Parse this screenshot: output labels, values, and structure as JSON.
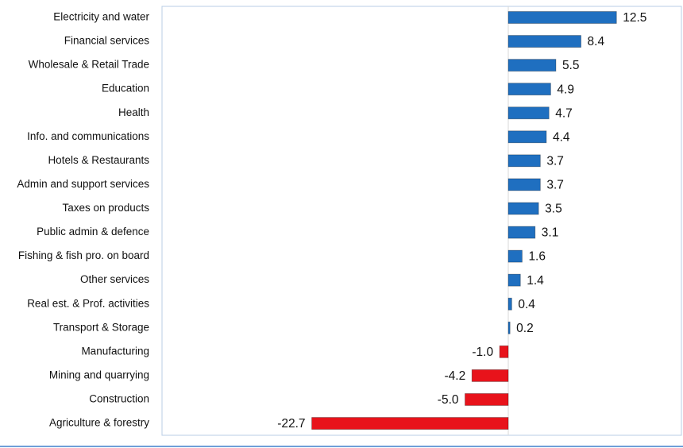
{
  "chart_data": {
    "type": "bar",
    "orientation": "horizontal",
    "categories": [
      "Electricity and water",
      "Financial services",
      "Wholesale & Retail Trade",
      "Education",
      "Health",
      "Info. and communications",
      "Hotels & Restaurants",
      "Admin and support services",
      "Taxes on products",
      "Public admin & defence",
      "Fishing & fish pro. on board",
      "Other services",
      "Real est. & Prof. activities",
      "Transport & Storage",
      "Manufacturing",
      "Mining and quarrying",
      "Construction",
      "Agriculture & forestry"
    ],
    "values": [
      12.5,
      8.4,
      5.5,
      4.9,
      4.7,
      4.4,
      3.7,
      3.7,
      3.5,
      3.1,
      1.6,
      1.4,
      0.4,
      0.2,
      -1.0,
      -4.2,
      -5.0,
      -22.7
    ],
    "value_labels": [
      "12.5",
      "8.4",
      "5.5",
      "4.9",
      "4.7",
      "4.4",
      "3.7",
      "3.7",
      "3.5",
      "3.1",
      "1.6",
      "1.4",
      "0.4",
      "0.2",
      "-1.0",
      "-4.2",
      "-5.0",
      "-22.7"
    ],
    "colors": [
      "#1f6fc0",
      "#1f6fc0",
      "#1f6fc0",
      "#1f6fc0",
      "#1f6fc0",
      "#1f6fc0",
      "#1f6fc0",
      "#1f6fc0",
      "#1f6fc0",
      "#1f6fc0",
      "#1f6fc0",
      "#1f6fc0",
      "#1f6fc0",
      "#1f6fc0",
      "#e8131b",
      "#e8131b",
      "#e8131b",
      "#e8131b"
    ],
    "xlim": [
      -40,
      20
    ]
  }
}
